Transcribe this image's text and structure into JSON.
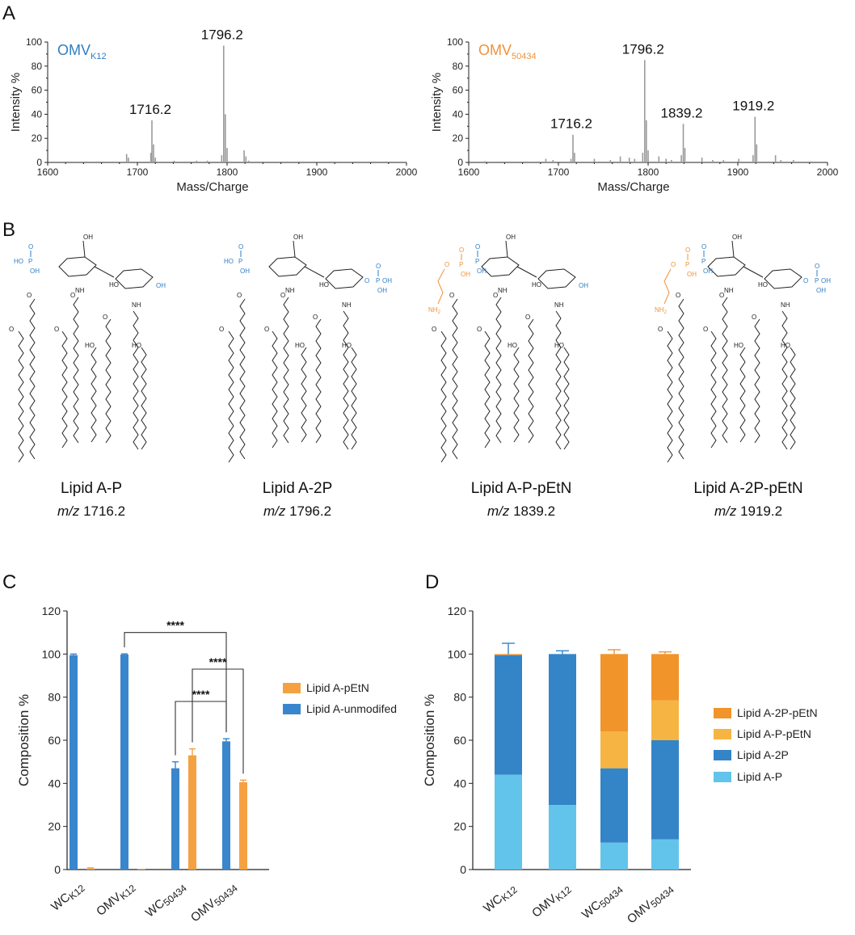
{
  "panel_labels": [
    "A",
    "B",
    "C",
    "D"
  ],
  "chart_data": [
    {
      "id": "A1",
      "type": "line",
      "title": "OMV",
      "title_sub": "K12",
      "title_color": "#2e7ec4",
      "xlabel": "Mass/Charge",
      "ylabel": "Intensity %",
      "xlim": [
        1600,
        2000
      ],
      "ylim": [
        0,
        100
      ],
      "xticks": [
        1600,
        1700,
        1800,
        1900,
        2000
      ],
      "yticks": [
        0,
        20,
        40,
        60,
        80,
        100
      ],
      "peaks": [
        [
          1688,
          7
        ],
        [
          1690,
          4
        ],
        [
          1715,
          8
        ],
        [
          1716.2,
          35
        ],
        [
          1718,
          15
        ],
        [
          1720,
          4
        ],
        [
          1741,
          1.5
        ],
        [
          1766,
          1.5
        ],
        [
          1778,
          1.5
        ],
        [
          1794,
          6
        ],
        [
          1796.2,
          97
        ],
        [
          1798,
          40
        ],
        [
          1800,
          12
        ],
        [
          1819,
          10
        ],
        [
          1821,
          5
        ],
        [
          1824,
          1.5
        ]
      ],
      "labels": [
        {
          "text": "1716.2",
          "x": 1716.2,
          "y": 35
        },
        {
          "text": "1796.2",
          "x": 1796.2,
          "y": 97
        }
      ]
    },
    {
      "id": "A2",
      "type": "line",
      "title": "OMV",
      "title_sub": "50434",
      "title_color": "#f0913a",
      "xlabel": "Mass/Charge",
      "ylabel": "Intensity %",
      "xlim": [
        1600,
        2000
      ],
      "ylim": [
        0,
        100
      ],
      "xticks": [
        1600,
        1700,
        1800,
        1900,
        2000
      ],
      "yticks": [
        0,
        20,
        40,
        60,
        80,
        100
      ],
      "peaks": [
        [
          1618,
          1
        ],
        [
          1686,
          3
        ],
        [
          1694,
          2
        ],
        [
          1714,
          3
        ],
        [
          1716.2,
          23
        ],
        [
          1718,
          8
        ],
        [
          1740,
          3
        ],
        [
          1758,
          2
        ],
        [
          1769,
          5
        ],
        [
          1779,
          4
        ],
        [
          1785,
          3
        ],
        [
          1794,
          8
        ],
        [
          1796.2,
          85
        ],
        [
          1798,
          35
        ],
        [
          1800,
          10
        ],
        [
          1812,
          5
        ],
        [
          1820,
          3
        ],
        [
          1826,
          2
        ],
        [
          1837,
          6
        ],
        [
          1839.2,
          32
        ],
        [
          1841,
          12
        ],
        [
          1860,
          4
        ],
        [
          1872,
          2
        ],
        [
          1884,
          2
        ],
        [
          1901,
          3
        ],
        [
          1917,
          6
        ],
        [
          1919.2,
          38
        ],
        [
          1921,
          15
        ],
        [
          1942,
          6
        ],
        [
          1948,
          2
        ],
        [
          1962,
          2
        ]
      ],
      "labels": [
        {
          "text": "1716.2",
          "x": 1716.2,
          "y": 23
        },
        {
          "text": "1796.2",
          "x": 1796.2,
          "y": 85
        },
        {
          "text": "1839.2",
          "x": 1839.2,
          "y": 32
        },
        {
          "text": "1919.2",
          "x": 1919.2,
          "y": 38
        }
      ]
    },
    {
      "id": "C",
      "type": "bar",
      "ylabel": "Composition %",
      "ylim": [
        0,
        120
      ],
      "yticks": [
        0,
        20,
        40,
        60,
        80,
        100,
        120
      ],
      "categories": [
        {
          "main": "WC",
          "sub": "K12"
        },
        {
          "main": "OMV",
          "sub": "K12"
        },
        {
          "main": "WC",
          "sub": "50434"
        },
        {
          "main": "OMV",
          "sub": "50434"
        }
      ],
      "series": [
        {
          "name": "Lipid A-unmodifed",
          "color": "#3a86cc",
          "values": [
            99.5,
            99.8,
            47,
            59.5
          ],
          "errors": [
            0.5,
            0.3,
            3,
            1.2
          ]
        },
        {
          "name": "Lipid A-pEtN",
          "color": "#f5a142",
          "values": [
            0.5,
            0.2,
            53,
            40.5
          ],
          "errors": [
            0.3,
            0,
            3,
            1
          ]
        }
      ],
      "legend": [
        "Lipid A-pEtN",
        "Lipid A-unmodifed"
      ],
      "significance": [
        {
          "label": "****",
          "from": [
            1,
            0
          ],
          "to": [
            3,
            0
          ],
          "y": 110
        },
        {
          "label": "****",
          "from": [
            2,
            1
          ],
          "to": [
            3,
            1
          ],
          "y": 93
        },
        {
          "label": "****",
          "from": [
            2,
            0
          ],
          "to": [
            3,
            0
          ],
          "y": 78
        }
      ]
    },
    {
      "id": "D",
      "type": "bar",
      "stacked": true,
      "ylabel": "Composition %",
      "ylim": [
        0,
        120
      ],
      "yticks": [
        0,
        20,
        40,
        60,
        80,
        100,
        120
      ],
      "categories": [
        {
          "main": "WC",
          "sub": "K12"
        },
        {
          "main": "OMV",
          "sub": "K12"
        },
        {
          "main": "WC",
          "sub": "50434"
        },
        {
          "main": "OMV",
          "sub": "50434"
        }
      ],
      "series": [
        {
          "name": "Lipid A-P",
          "color": "#62c4ea",
          "values": [
            44,
            30,
            12.5,
            14
          ],
          "errors": [
            5.5,
            1.5,
            1.2,
            0.5
          ]
        },
        {
          "name": "Lipid A-2P",
          "color": "#3385c8",
          "values": [
            55.5,
            70,
            34.5,
            46
          ],
          "errors": [
            5.5,
            1.5,
            4,
            1
          ]
        },
        {
          "name": "Lipid A-P-pEtN",
          "color": "#f6b443",
          "values": [
            0,
            0,
            17,
            18.5
          ],
          "errors": [
            0,
            0,
            1,
            1
          ]
        },
        {
          "name": "Lipid A-2P-pEtN",
          "color": "#f1942a",
          "values": [
            0.5,
            0,
            36,
            21.5
          ],
          "errors": [
            0,
            0,
            2,
            1
          ]
        }
      ],
      "legend": [
        "Lipid A-2P-pEtN",
        "Lipid A-P-pEtN",
        "Lipid A-2P",
        "Lipid A-P"
      ]
    }
  ],
  "structures": [
    {
      "name": "Lipid A-P",
      "mz_label": "m/z",
      "mz": "1716.2"
    },
    {
      "name": "Lipid A-2P",
      "mz_label": "m/z",
      "mz": "1796.2"
    },
    {
      "name": "Lipid A-P-pEtN",
      "mz_label": "m/z",
      "mz": "1839.2"
    },
    {
      "name": "Lipid A-2P-pEtN",
      "mz_label": "m/z",
      "mz": "1919.2"
    }
  ],
  "chem_labels": {
    "ho": "HO",
    "oh": "OH",
    "nh": "NH",
    "nh2": "NH",
    "two": "2",
    "p": "P",
    "o": "O"
  }
}
